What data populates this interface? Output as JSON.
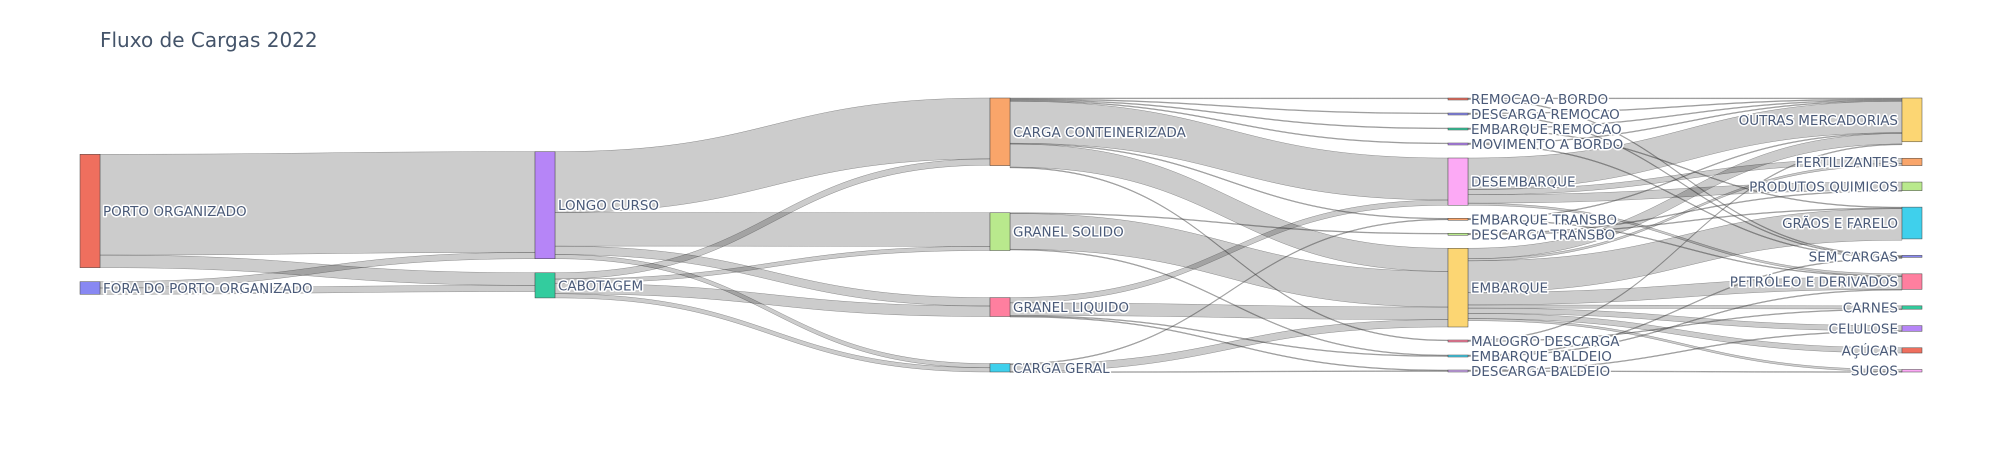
{
  "chart_data": {
    "type": "sankey",
    "title": "Fluxo de Cargas 2022",
    "link_color": "#000000",
    "nodes": [
      {
        "id": "po",
        "label": "PORTO ORGANIZADO",
        "color": "#EF6F5E",
        "column": 0
      },
      {
        "id": "fpo",
        "label": "FORA DO PORTO ORGANIZADO",
        "color": "#8888F2",
        "column": 0
      },
      {
        "id": "lc",
        "label": "LONGO CURSO",
        "color": "#B685F7",
        "column": 1
      },
      {
        "id": "cab",
        "label": "CABOTAGEM",
        "color": "#33CC9E",
        "column": 1
      },
      {
        "id": "cc",
        "label": "CARGA CONTEINERIZADA",
        "color": "#F9A56A",
        "column": 2
      },
      {
        "id": "gs",
        "label": "GRANEL SOLIDO",
        "color": "#B9E98D",
        "column": 2
      },
      {
        "id": "gl",
        "label": "GRANEL LIQUIDO",
        "color": "#FF7F9F",
        "column": 2
      },
      {
        "id": "cg",
        "label": "CARGA GERAL",
        "color": "#3FD0EC",
        "column": 2
      },
      {
        "id": "rab",
        "label": "REMOCAO A BORDO",
        "color": "#EF6F5E",
        "column": 3
      },
      {
        "id": "dr",
        "label": "DESCARGA REMOCAO",
        "color": "#8888F2",
        "column": 3
      },
      {
        "id": "er",
        "label": "EMBARQUE REMOCAO",
        "color": "#33CC9E",
        "column": 3
      },
      {
        "id": "mab",
        "label": "MOVIMENTO A BORDO",
        "color": "#B685F7",
        "column": 3
      },
      {
        "id": "des",
        "label": "DESEMBARQUE",
        "color": "#FCA9F5",
        "column": 3
      },
      {
        "id": "et",
        "label": "EMBARQUE TRANSBO",
        "color": "#F9A56A",
        "column": 3
      },
      {
        "id": "dt",
        "label": "DESCARGA TRANSBO",
        "color": "#B9E98D",
        "column": 3
      },
      {
        "id": "emb",
        "label": "EMBARQUE",
        "color": "#FCD673",
        "column": 3
      },
      {
        "id": "md",
        "label": "MALOGRO DESCARGA",
        "color": "#FF7F9F",
        "column": 3
      },
      {
        "id": "eb",
        "label": "EMBARQUE BALDEIO",
        "color": "#3FD0EC",
        "column": 3
      },
      {
        "id": "db",
        "label": "DESCARGA BALDEIO",
        "color": "#CFA7F2",
        "column": 3
      },
      {
        "id": "om",
        "label": "OUTRAS MERCADORIAS",
        "color": "#FCD673",
        "column": 4
      },
      {
        "id": "fer",
        "label": "FERTILIZANTES",
        "color": "#F9A56A",
        "column": 4
      },
      {
        "id": "pq",
        "label": "PRODUTOS QUIMICOS",
        "color": "#B9E98D",
        "column": 4
      },
      {
        "id": "gf",
        "label": "GRÃOS E FARELO",
        "color": "#3FD0EC",
        "column": 4
      },
      {
        "id": "sc",
        "label": "SEM CARGAS",
        "color": "#8888F2",
        "column": 4
      },
      {
        "id": "pd",
        "label": "PETRÓLEO E DERIVADOS",
        "color": "#FF7F9F",
        "column": 4
      },
      {
        "id": "car",
        "label": "CARNES",
        "color": "#33CC9E",
        "column": 4
      },
      {
        "id": "cel",
        "label": "CELULOSE",
        "color": "#B685F7",
        "column": 4
      },
      {
        "id": "acu",
        "label": "AÇÚCAR",
        "color": "#EF6F5E",
        "column": 4
      },
      {
        "id": "suc",
        "label": "SUCOS",
        "color": "#FCA9F5",
        "column": 4
      }
    ],
    "links": [
      {
        "source": "po",
        "target": "lc",
        "value": 96
      },
      {
        "source": "po",
        "target": "cab",
        "value": 12
      },
      {
        "source": "fpo",
        "target": "lc",
        "value": 6
      },
      {
        "source": "fpo",
        "target": "cab",
        "value": 6
      },
      {
        "source": "lc",
        "target": "cc",
        "value": 58
      },
      {
        "source": "lc",
        "target": "gs",
        "value": 32
      },
      {
        "source": "lc",
        "target": "gl",
        "value": 8
      },
      {
        "source": "lc",
        "target": "cg",
        "value": 4
      },
      {
        "source": "cab",
        "target": "cc",
        "value": 6
      },
      {
        "source": "cab",
        "target": "gs",
        "value": 4
      },
      {
        "source": "cab",
        "target": "gl",
        "value": 10
      },
      {
        "source": "cab",
        "target": "cg",
        "value": 4
      },
      {
        "source": "cc",
        "target": "des",
        "value": 40
      },
      {
        "source": "cc",
        "target": "emb",
        "value": 22
      },
      {
        "source": "cc",
        "target": "rab",
        "value": 0.4
      },
      {
        "source": "cc",
        "target": "dr",
        "value": 0.4
      },
      {
        "source": "cc",
        "target": "er",
        "value": 0.4
      },
      {
        "source": "cc",
        "target": "mab",
        "value": 0.4
      },
      {
        "source": "cc",
        "target": "et",
        "value": 0.4
      },
      {
        "source": "cc",
        "target": "md",
        "value": 0.4
      },
      {
        "source": "gs",
        "target": "emb",
        "value": 34
      },
      {
        "source": "gs",
        "target": "dt",
        "value": 0.4
      },
      {
        "source": "gs",
        "target": "eb",
        "value": 0.4
      },
      {
        "source": "gl",
        "target": "emb",
        "value": 12
      },
      {
        "source": "gl",
        "target": "des",
        "value": 5
      },
      {
        "source": "gl",
        "target": "eb",
        "value": 0.4
      },
      {
        "source": "gl",
        "target": "db",
        "value": 0.4
      },
      {
        "source": "cg",
        "target": "emb",
        "value": 7
      },
      {
        "source": "cg",
        "target": "et",
        "value": 0.4
      },
      {
        "source": "cg",
        "target": "db",
        "value": 0.4
      },
      {
        "source": "des",
        "target": "om",
        "value": 30
      },
      {
        "source": "des",
        "target": "fer",
        "value": 5
      },
      {
        "source": "des",
        "target": "pq",
        "value": 8
      },
      {
        "source": "des",
        "target": "pd",
        "value": 2
      },
      {
        "source": "emb",
        "target": "om",
        "value": 10
      },
      {
        "source": "emb",
        "target": "gf",
        "value": 30
      },
      {
        "source": "emb",
        "target": "pd",
        "value": 12
      },
      {
        "source": "emb",
        "target": "car",
        "value": 3
      },
      {
        "source": "emb",
        "target": "cel",
        "value": 5
      },
      {
        "source": "emb",
        "target": "acu",
        "value": 5
      },
      {
        "source": "emb",
        "target": "suc",
        "value": 2
      },
      {
        "source": "emb",
        "target": "fer",
        "value": 2
      },
      {
        "source": "rab",
        "target": "om",
        "value": 0.3
      },
      {
        "source": "rab",
        "target": "sc",
        "value": 0.1
      },
      {
        "source": "dr",
        "target": "om",
        "value": 0.3
      },
      {
        "source": "dr",
        "target": "sc",
        "value": 0.1
      },
      {
        "source": "er",
        "target": "om",
        "value": 0.3
      },
      {
        "source": "er",
        "target": "gf",
        "value": 0.1
      },
      {
        "source": "mab",
        "target": "om",
        "value": 0.2
      },
      {
        "source": "mab",
        "target": "sc",
        "value": 0.2
      },
      {
        "source": "et",
        "target": "om",
        "value": 0.4
      },
      {
        "source": "et",
        "target": "pd",
        "value": 0.4
      },
      {
        "source": "dt",
        "target": "gf",
        "value": 0.2
      },
      {
        "source": "dt",
        "target": "pq",
        "value": 0.2
      },
      {
        "source": "md",
        "target": "om",
        "value": 0.2
      },
      {
        "source": "md",
        "target": "car",
        "value": 0.2
      },
      {
        "source": "eb",
        "target": "pd",
        "value": 0.4
      },
      {
        "source": "eb",
        "target": "sc",
        "value": 0.4
      },
      {
        "source": "db",
        "target": "suc",
        "value": 0.4
      },
      {
        "source": "db",
        "target": "cel",
        "value": 0.4
      }
    ]
  }
}
